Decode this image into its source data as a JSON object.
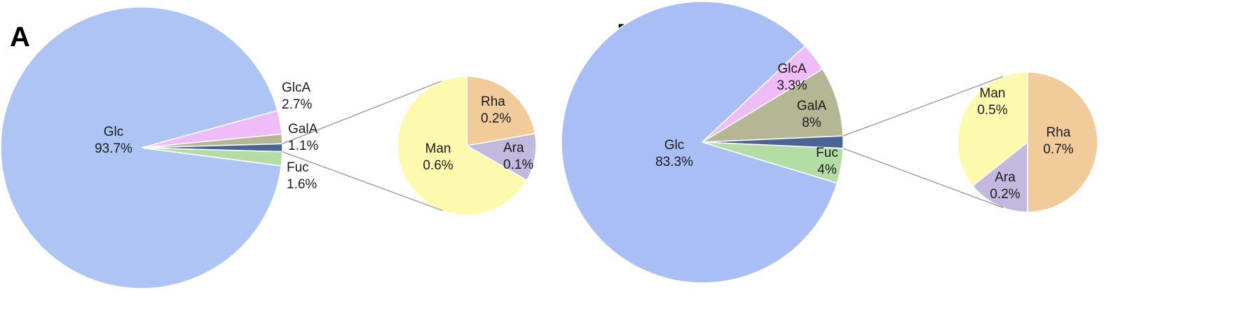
{
  "chart_data": [
    {
      "type": "pie",
      "panel": "A",
      "main": {
        "slices": [
          {
            "name": "Glc",
            "value": 93.7,
            "label": "93.7%",
            "color": "#aec4f5"
          },
          {
            "name": "GlcA",
            "value": 2.7,
            "label": "2.7%",
            "color": "#eebcf6"
          },
          {
            "name": "GalA",
            "value": 1.1,
            "label": "1.1%",
            "color": "#b5b694"
          },
          {
            "name": "Other",
            "value": 0.9,
            "label": "",
            "color": "#4a6496"
          },
          {
            "name": "Fuc",
            "value": 1.6,
            "label": "1.6%",
            "color": "#b4dda5"
          }
        ]
      },
      "breakdown": {
        "slices": [
          {
            "name": "Rha",
            "value": 0.2,
            "label": "0.2%",
            "color": "#f1cb99"
          },
          {
            "name": "Ara",
            "value": 0.1,
            "label": "0.1%",
            "color": "#c3b8dd"
          },
          {
            "name": "Man",
            "value": 0.6,
            "label": "0.6%",
            "color": "#fefaad"
          }
        ]
      }
    },
    {
      "type": "pie",
      "panel": "B",
      "main": {
        "slices": [
          {
            "name": "Glc",
            "value": 83.3,
            "label": "83.3%",
            "color": "#a8bef4"
          },
          {
            "name": "GlcA",
            "value": 3.3,
            "label": "3.3%",
            "color": "#eebcf6"
          },
          {
            "name": "GalA",
            "value": 8,
            "label": "8%",
            "color": "#b5b694"
          },
          {
            "name": "Other",
            "value": 1.4,
            "label": "",
            "color": "#4a6496"
          },
          {
            "name": "Fuc",
            "value": 4,
            "label": "4%",
            "color": "#b4dda5"
          }
        ]
      },
      "breakdown": {
        "slices": [
          {
            "name": "Rha",
            "value": 0.7,
            "label": "0.7%",
            "color": "#f1cb99"
          },
          {
            "name": "Ara",
            "value": 0.2,
            "label": "0.2%",
            "color": "#c3b8dd"
          },
          {
            "name": "Man",
            "value": 0.5,
            "label": "0.5%",
            "color": "#fefaad"
          }
        ]
      }
    }
  ]
}
